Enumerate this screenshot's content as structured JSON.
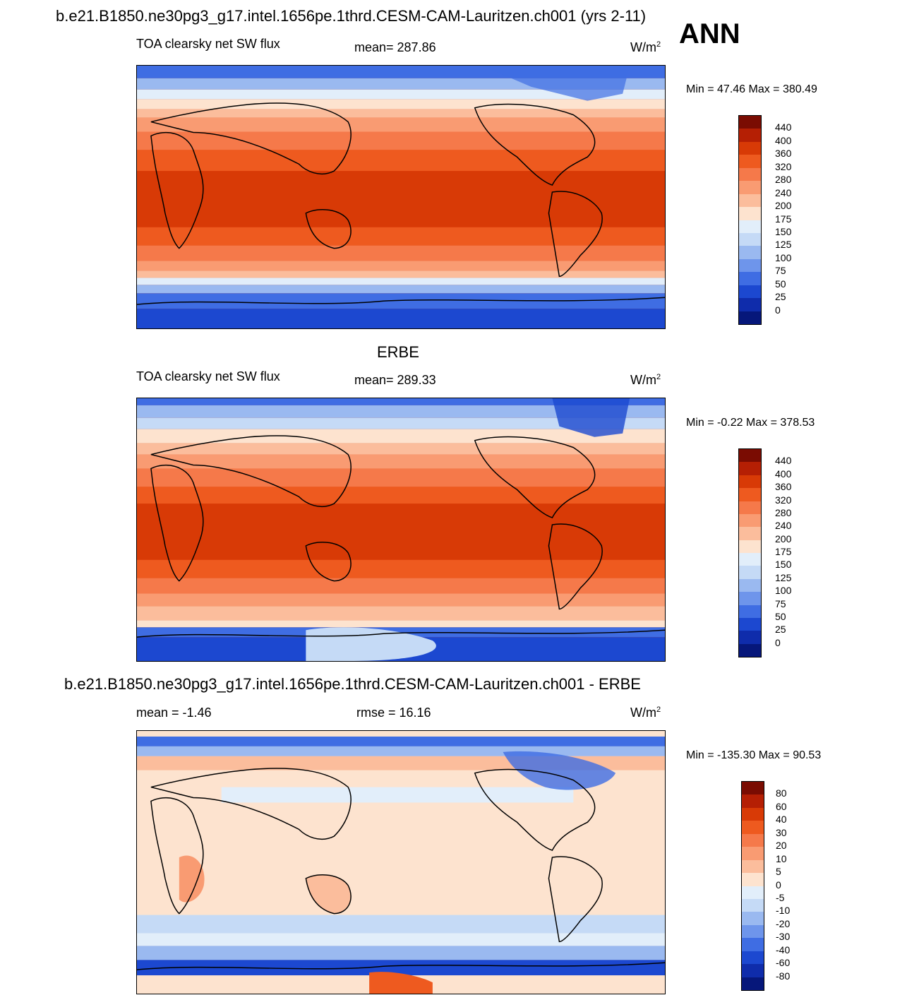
{
  "header": {
    "title": "b.e21.B1850.ne30pg3_g17.intel.1656pe.1thrd.CESM-CAM-Lauritzen.ch001 (yrs 2-11)",
    "season": "ANN"
  },
  "panels": [
    {
      "variable": "TOA clearsky net SW flux",
      "mean_text": "mean= 287.86",
      "units": "W/m",
      "units_sup": "2",
      "minmax": "Min =  47.46 Max = 380.49"
    },
    {
      "title": "ERBE",
      "variable": "TOA clearsky net SW flux",
      "mean_text": "mean= 289.33",
      "units": "W/m",
      "units_sup": "2",
      "minmax": "Min =  -0.22 Max = 378.53"
    },
    {
      "title": "b.e21.B1850.ne30pg3_g17.intel.1656pe.1thrd.CESM-CAM-Lauritzen.ch001 - ERBE",
      "mean_text": "mean =  -1.46",
      "rmse_text": "rmse =  16.16",
      "units": "W/m",
      "units_sup": "2",
      "minmax": "Min = -135.30 Max =  90.53"
    }
  ],
  "colorbars": {
    "abs": {
      "labels": [
        "440",
        "400",
        "360",
        "320",
        "280",
        "240",
        "200",
        "175",
        "150",
        "125",
        "100",
        "75",
        "50",
        "25",
        "0"
      ],
      "colors": [
        "#7a0c02",
        "#b51f04",
        "#d83a06",
        "#ee5a1f",
        "#f5794a",
        "#f99b72",
        "#fbbd9c",
        "#fde3cf",
        "#e2eefa",
        "#c5daf6",
        "#9ab9f0",
        "#6e95eb",
        "#3f6de3",
        "#1c48d0",
        "#0f2cab",
        "#06177a"
      ]
    },
    "diff": {
      "labels": [
        "80",
        "60",
        "40",
        "30",
        "20",
        "10",
        "5",
        "0",
        "-5",
        "-10",
        "-20",
        "-30",
        "-40",
        "-60",
        "-80"
      ],
      "colors": [
        "#7a0c02",
        "#b51f04",
        "#d83a06",
        "#ee5a1f",
        "#f5794a",
        "#f99b72",
        "#fbbd9c",
        "#fde3cf",
        "#e2eefa",
        "#c5daf6",
        "#9ab9f0",
        "#6e95eb",
        "#3f6de3",
        "#1c48d0",
        "#0f2cab",
        "#06177a"
      ]
    }
  }
}
